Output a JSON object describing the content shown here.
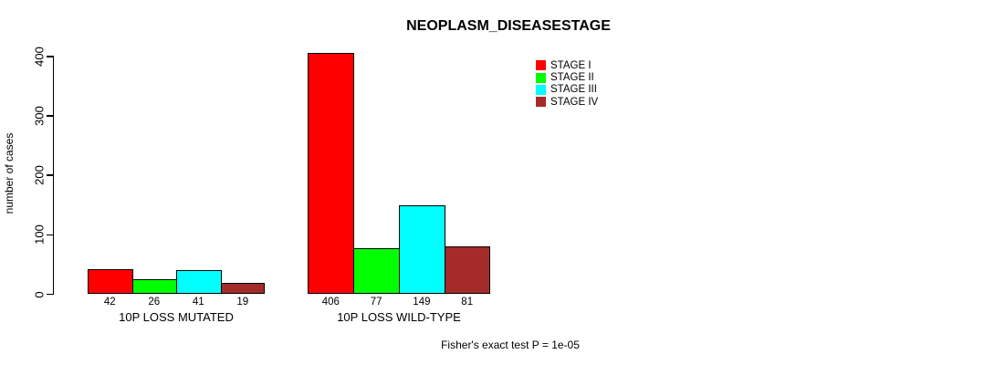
{
  "chart_data": {
    "type": "bar",
    "title": "NEOPLASM_DISEASESTAGE",
    "ylabel": "number of cases",
    "xlabel": "",
    "ylim": [
      0,
      400
    ],
    "yticks": [
      0,
      100,
      200,
      300,
      400
    ],
    "grid": false,
    "legend_position": "top-right",
    "categories": [
      "10P LOSS MUTATED",
      "10P LOSS WILD-TYPE"
    ],
    "series": [
      {
        "name": "STAGE I",
        "color": "#FF0000",
        "values": [
          42,
          406
        ]
      },
      {
        "name": "STAGE II",
        "color": "#00FF00",
        "values": [
          26,
          77
        ]
      },
      {
        "name": "STAGE III",
        "color": "#00FFFF",
        "values": [
          41,
          149
        ]
      },
      {
        "name": "STAGE IV",
        "color": "#A52A2A",
        "values": [
          19,
          81
        ]
      }
    ],
    "bar_value_labels": [
      [
        "42",
        "26",
        "41",
        "19"
      ],
      [
        "406",
        "77",
        "149",
        "81"
      ]
    ],
    "footnote": "Fisher's exact test P = 1e-05",
    "axis_color": "#000000",
    "text_color": "#000000",
    "background_color": "#FFFFFF"
  }
}
